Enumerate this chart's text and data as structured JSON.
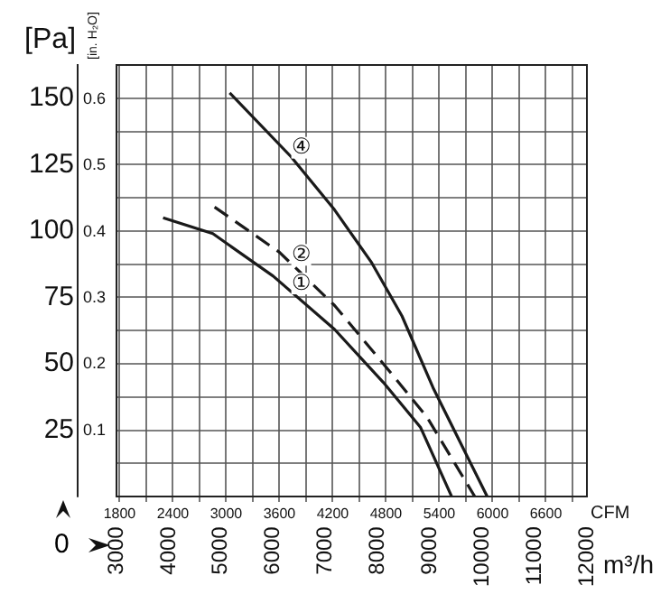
{
  "chart_data": {
    "type": "line",
    "ylabel": "[Pa]",
    "y2label": "[in. H₂O]",
    "xlabel": "CFM",
    "x2label": "m³/h",
    "xlim": [
      1766,
      7063
    ],
    "x2lim": [
      3000,
      12000
    ],
    "ylim": [
      0,
      162.5
    ],
    "y2lim": [
      0,
      0.652
    ],
    "xticks": [
      1800,
      {
        "value": 2100,
        "label": null
      },
      2400,
      {
        "value": 2700,
        "label": null
      },
      3000,
      {
        "value": 3300,
        "label": null
      },
      3600,
      {
        "value": 3900,
        "label": null
      },
      4200,
      {
        "value": 4500,
        "label": null
      },
      4800,
      {
        "value": 5100,
        "label": null
      },
      5400,
      {
        "value": 5700,
        "label": null
      },
      6000,
      {
        "value": 6300,
        "label": null
      },
      6600,
      {
        "value": 6900,
        "label": null
      }
    ],
    "x2ticks": [
      3000,
      4000,
      5000,
      6000,
      7000,
      8000,
      9000,
      10000,
      11000,
      12000
    ],
    "yticks": [
      {
        "value": 12.5,
        "label": null
      },
      25,
      {
        "value": 37.5,
        "label": null
      },
      50,
      {
        "value": 62.5,
        "label": null
      },
      75,
      {
        "value": 87.5,
        "label": null
      },
      100,
      {
        "value": 112.5,
        "label": null
      },
      125,
      {
        "value": 137.5,
        "label": null
      },
      150
    ],
    "y2ticks": [
      0.1,
      0.2,
      0.3,
      0.4,
      0.5,
      0.6
    ],
    "grid": true,
    "legend": false,
    "marker": "none",
    "annotations": [
      "0"
    ],
    "series": [
      {
        "name": "①",
        "color": "#1a1a1a",
        "line_style": "solid",
        "x": [
          2290,
          2850,
          3530,
          4220,
          4770,
          5190,
          5540
        ],
        "values": [
          105,
          99,
          83,
          63,
          43,
          26,
          0
        ]
      },
      {
        "name": "②",
        "color": "#1a1a1a",
        "line_style": "dashed",
        "x": [
          2870,
          3600,
          4220,
          4770,
          5260,
          5800
        ],
        "values": [
          109,
          92,
          72,
          50,
          30,
          0
        ]
      },
      {
        "name": "④",
        "color": "#1a1a1a",
        "line_style": "solid",
        "x": [
          3040,
          3730,
          4220,
          4640,
          4980,
          5330,
          5940
        ],
        "values": [
          152,
          128,
          108,
          88,
          68,
          41,
          0
        ]
      }
    ]
  }
}
